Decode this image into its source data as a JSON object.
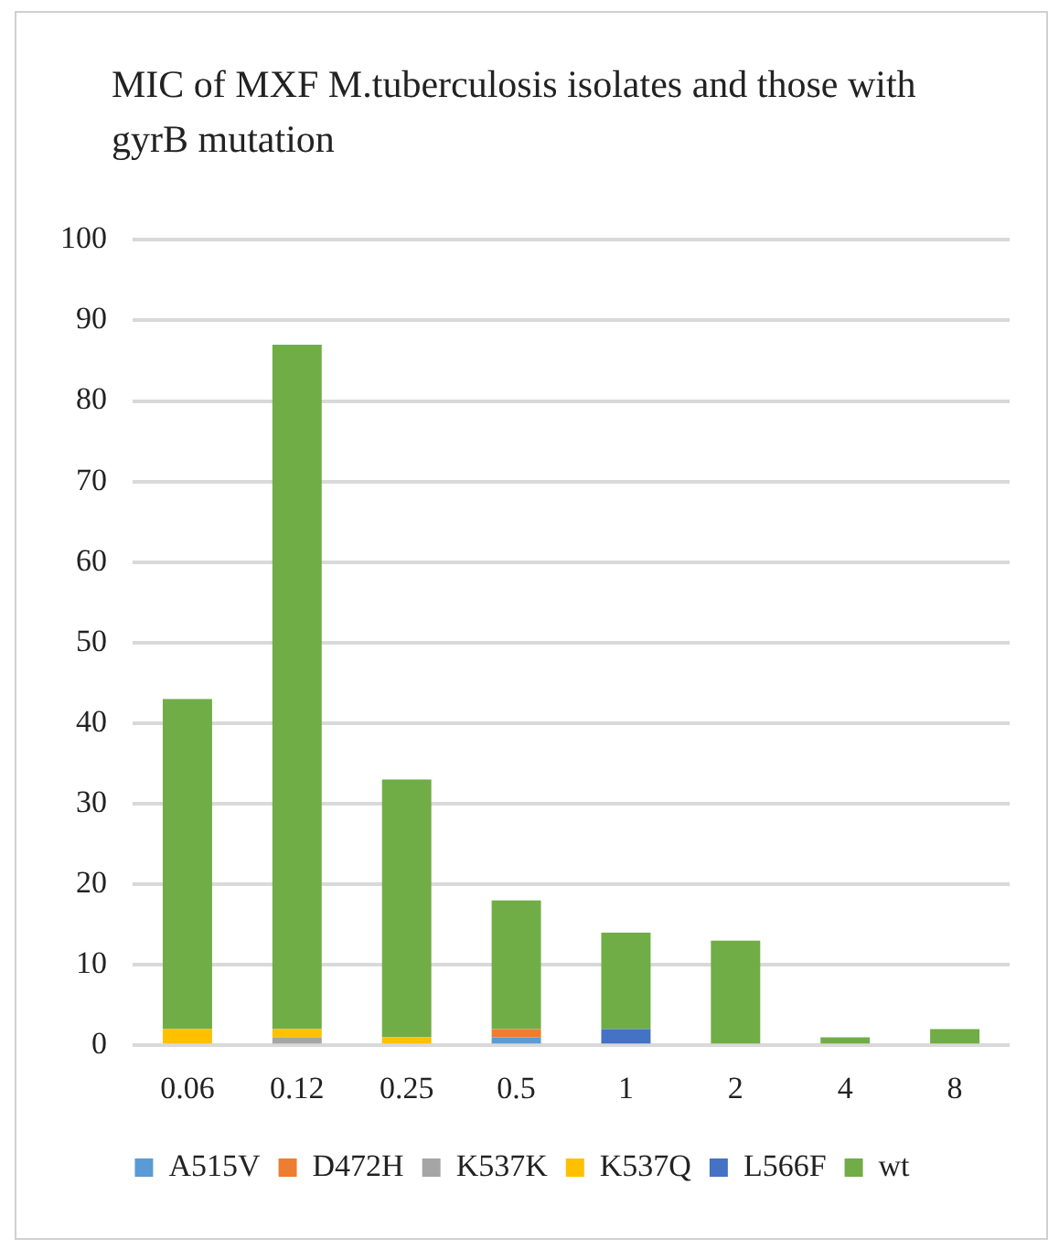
{
  "chart_data": {
    "type": "bar",
    "title": "MIC of MXF  M.tuberculosis isolates and those with gyrB mutation",
    "stacked": true,
    "categories": [
      "0.06",
      "0.12",
      "0.25",
      "0.5",
      "1",
      "2",
      "4",
      "8"
    ],
    "series": [
      {
        "name": "A515V",
        "color": "#5b9bd5",
        "values": [
          0,
          0,
          0,
          1,
          0,
          0,
          0,
          0
        ]
      },
      {
        "name": "D472H",
        "color": "#ed7d31",
        "values": [
          0,
          0,
          0,
          1,
          0,
          0,
          0,
          0
        ]
      },
      {
        "name": "K537K",
        "color": "#a5a5a5",
        "values": [
          0,
          1,
          0,
          0,
          0,
          0,
          0,
          0
        ]
      },
      {
        "name": "K537Q",
        "color": "#ffc000",
        "values": [
          2,
          1,
          1,
          0,
          0,
          0,
          0,
          0
        ]
      },
      {
        "name": "L566F",
        "color": "#4472c4",
        "values": [
          0,
          0,
          0,
          0,
          2,
          0,
          0,
          0
        ]
      },
      {
        "name": "wt",
        "color": "#70ad47",
        "values": [
          41,
          85,
          32,
          16,
          12,
          13,
          1,
          2
        ]
      }
    ],
    "ylim": [
      0,
      100
    ],
    "yticks": [
      0,
      10,
      20,
      30,
      40,
      50,
      60,
      70,
      80,
      90,
      100
    ],
    "grid": "y",
    "legend": "bottom"
  }
}
